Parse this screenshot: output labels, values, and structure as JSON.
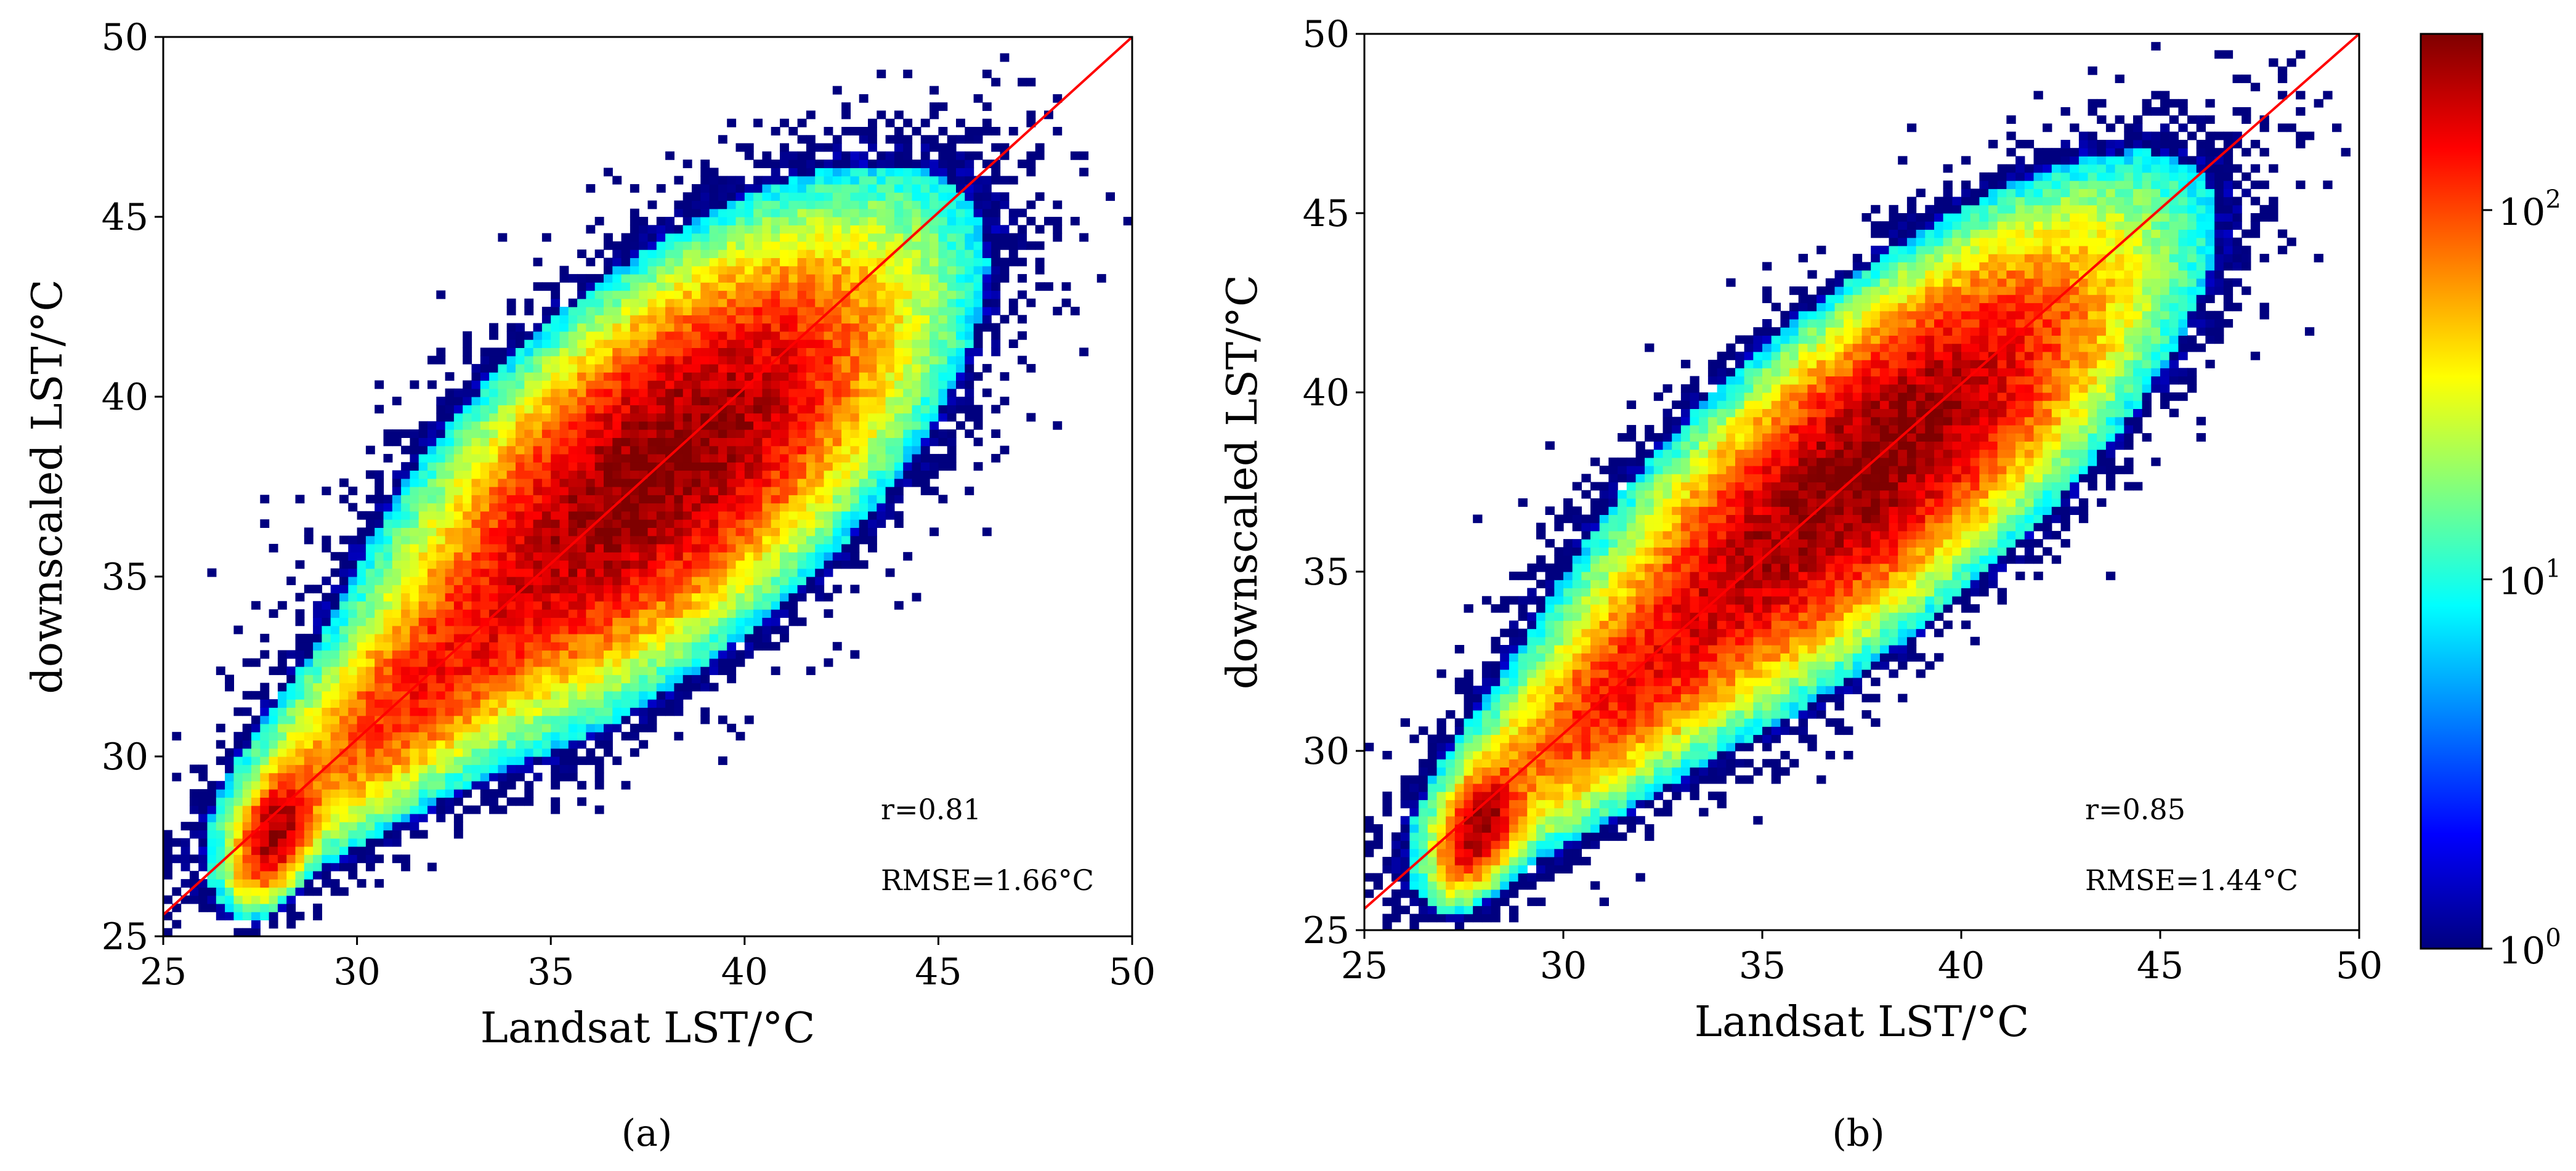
{
  "chart_data": [
    {
      "type": "heatmap",
      "panel_label": "(a)",
      "xlabel": "Landsat LST/°C",
      "ylabel": "downscaled LST/°C",
      "xlim": [
        25,
        50
      ],
      "ylim": [
        25,
        50
      ],
      "xticks": [
        25,
        30,
        35,
        40,
        45,
        50
      ],
      "yticks": [
        25,
        30,
        35,
        40,
        45,
        50
      ],
      "grid": false,
      "density_components": [
        {
          "center": [
            37.8,
            38.0
          ],
          "sigma_major": 3.9,
          "sigma_minor": 1.75,
          "angle_deg": 45,
          "weight": 1.0
        },
        {
          "center": [
            27.9,
            27.9
          ],
          "sigma_major": 0.9,
          "sigma_minor": 0.45,
          "angle_deg": 70,
          "weight": 0.8
        },
        {
          "center": [
            31.5,
            31.8
          ],
          "sigma_major": 3.0,
          "sigma_minor": 1.0,
          "angle_deg": 45,
          "weight": 0.35
        }
      ],
      "reference_line": {
        "x": [
          25,
          50
        ],
        "y": [
          25.6,
          50
        ],
        "color": "#ff0000"
      },
      "annotations": [
        "r=0.81",
        "RMSE=1.66°C"
      ]
    },
    {
      "type": "heatmap",
      "panel_label": "(b)",
      "xlabel": "Landsat LST/°C",
      "ylabel": "downscaled LST/°C",
      "xlim": [
        25,
        50
      ],
      "ylim": [
        25,
        50
      ],
      "xticks": [
        25,
        30,
        35,
        40,
        45,
        50
      ],
      "yticks": [
        25,
        30,
        35,
        40,
        45,
        50
      ],
      "grid": false,
      "density_components": [
        {
          "center": [
            37.6,
            37.9
          ],
          "sigma_major": 4.2,
          "sigma_minor": 1.5,
          "angle_deg": 45,
          "weight": 1.0
        },
        {
          "center": [
            27.9,
            27.9
          ],
          "sigma_major": 0.9,
          "sigma_minor": 0.45,
          "angle_deg": 70,
          "weight": 0.8
        },
        {
          "center": [
            31.5,
            31.6
          ],
          "sigma_major": 3.0,
          "sigma_minor": 0.95,
          "angle_deg": 45,
          "weight": 0.35
        }
      ],
      "reference_line": {
        "x": [
          25,
          50
        ],
        "y": [
          25.6,
          50
        ],
        "color": "#ff0000"
      },
      "annotations": [
        "r=0.85",
        "RMSE=1.44°C"
      ]
    }
  ],
  "colorbar": {
    "scale": "log",
    "range": [
      1,
      300
    ],
    "ticks": [
      {
        "base": "10",
        "exp": "0",
        "value": 1
      },
      {
        "base": "10",
        "exp": "1",
        "value": 10
      },
      {
        "base": "10",
        "exp": "2",
        "value": 100
      }
    ],
    "colormap": [
      "#00007f",
      "#0000ff",
      "#007fff",
      "#00ffff",
      "#7fff7f",
      "#ffff00",
      "#ff7f00",
      "#ff0000",
      "#7f0000"
    ]
  }
}
